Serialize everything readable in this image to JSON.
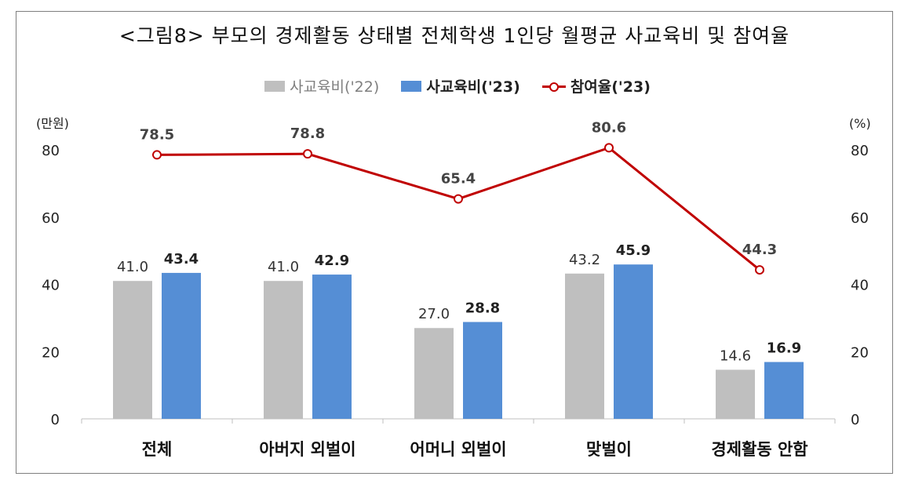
{
  "title": "<그림8> 부모의 경제활동 상태별 전체학생 1인당 월평균 사교육비 및 참여율",
  "legend": {
    "series1": "사교육비('22)",
    "series2": "사교육비('23)",
    "series3": "참여율('23)"
  },
  "colors": {
    "series1": "#bfbfbf",
    "series2": "#558ed5",
    "series3": "#c00000"
  },
  "chart_data": {
    "type": "bar",
    "title": "<그림8> 부모의 경제활동 상태별 전체학생 1인당 월평균 사교육비 및 참여율",
    "categories": [
      "전체",
      "아버지 외벌이",
      "어머니 외벌이",
      "맞벌이",
      "경제활동 안함"
    ],
    "series": [
      {
        "name": "사교육비('22)",
        "type": "bar",
        "axis": "left",
        "values": [
          41.0,
          41.0,
          27.0,
          43.2,
          14.6
        ],
        "labels": [
          "41.0",
          "41.0",
          "27.0",
          "43.2",
          "14.6"
        ]
      },
      {
        "name": "사교육비('23)",
        "type": "bar",
        "axis": "left",
        "values": [
          43.4,
          42.9,
          28.8,
          45.9,
          16.9
        ],
        "labels": [
          "43.4",
          "42.9",
          "28.8",
          "45.9",
          "16.9"
        ]
      },
      {
        "name": "참여율('23)",
        "type": "line",
        "axis": "right",
        "values": [
          78.5,
          78.8,
          65.4,
          80.6,
          44.3
        ],
        "labels": [
          "78.5",
          "78.8",
          "65.4",
          "80.6",
          "44.3"
        ]
      }
    ],
    "ylabel_left": "(만원)",
    "ylabel_right": "(%)",
    "ylim_left": [
      0,
      80
    ],
    "ylim_right": [
      0,
      80
    ],
    "yticks": [
      "0",
      "20",
      "40",
      "60",
      "80"
    ],
    "grid": false,
    "legend_position": "top"
  }
}
